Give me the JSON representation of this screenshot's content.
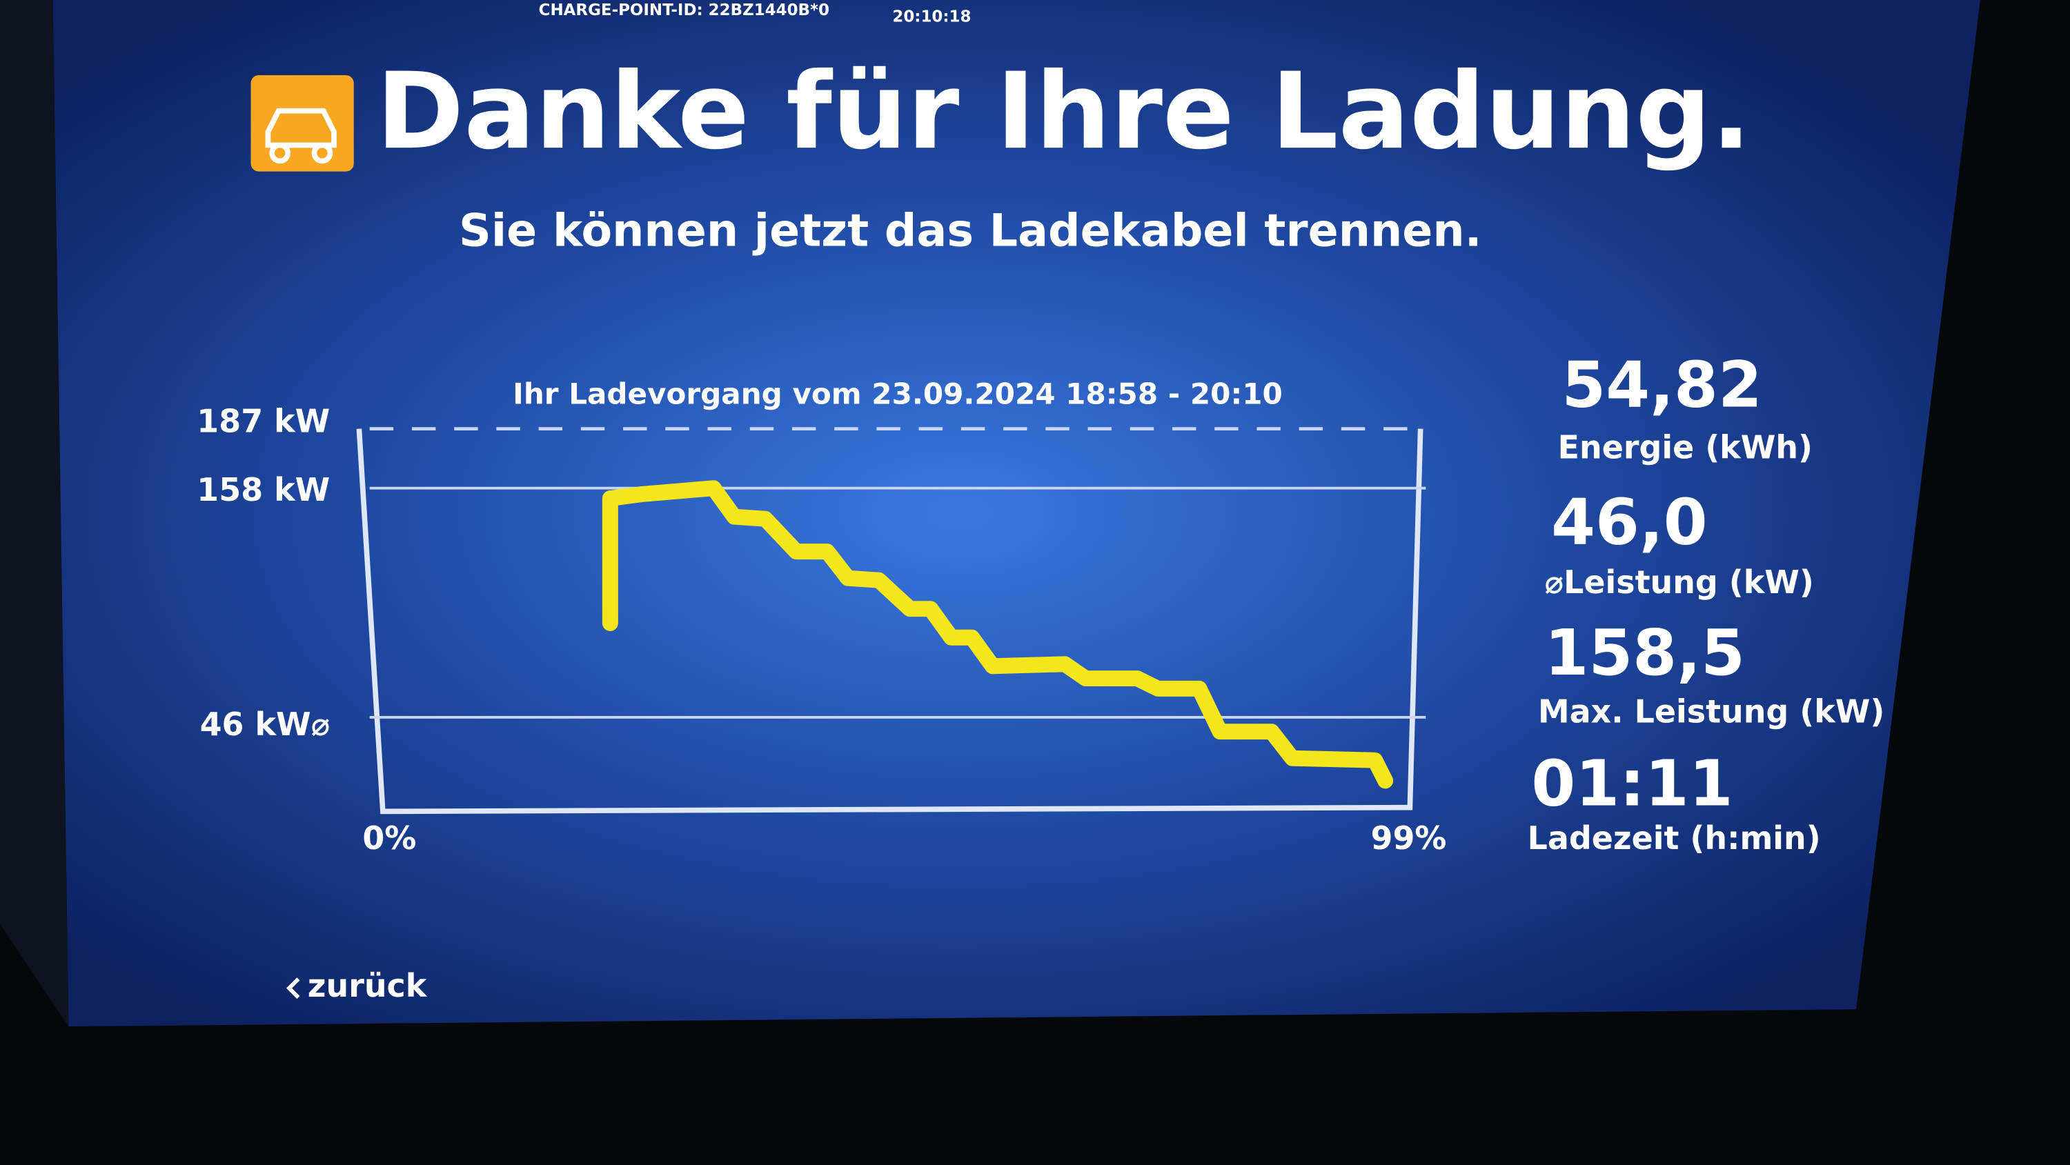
{
  "header": {
    "charge_point_id": "CHARGE-POINT-ID: 22BZ1440B*0",
    "time": "20:10:18"
  },
  "title": "Danke für Ihre Ladung.",
  "subtitle": "Sie können jetzt das Ladekabel trennen.",
  "chart_data": {
    "type": "line",
    "title": "Ihr Ladevorgang vom 23.09.2024 18:58 - 20:10",
    "x": [
      22,
      22,
      25,
      32,
      34,
      37,
      40,
      43,
      45,
      48,
      51,
      53,
      55,
      57,
      59,
      66,
      68,
      73,
      75,
      79,
      81,
      86,
      88,
      96,
      97
    ],
    "values": [
      92,
      153,
      155,
      158,
      144,
      143,
      127,
      127,
      114,
      113,
      99,
      99,
      85,
      85,
      71,
      72,
      65,
      65,
      60,
      60,
      39,
      39,
      26,
      25,
      15
    ],
    "color": "#f5e61a",
    "xlim": [
      0,
      99
    ],
    "xticks": [
      {
        "value": 0,
        "label": "0%"
      },
      {
        "value": 99,
        "label": "99%"
      }
    ],
    "ylim": [
      0,
      187
    ],
    "yticks": [
      {
        "value": 46,
        "label": "46 kW⌀"
      },
      {
        "value": 158,
        "label": "158 kW"
      },
      {
        "value": 187,
        "label": "187 kW"
      }
    ],
    "grid": true
  },
  "stats": [
    {
      "value": "54,82",
      "label": "Energie (kWh)"
    },
    {
      "value": "46,0",
      "label": "⌀Leistung (kW)"
    },
    {
      "value": "158,5",
      "label": "Max. Leistung (kW)"
    },
    {
      "value": "01:11",
      "label": "Ladezeit (h:min)"
    }
  ],
  "back": "zurück"
}
